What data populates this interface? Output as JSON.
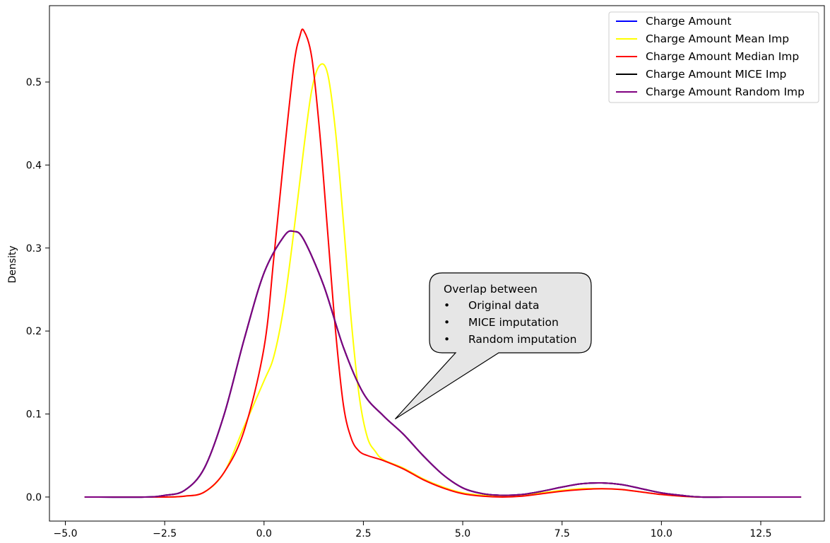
{
  "chart_data": {
    "type": "line",
    "title": "",
    "xlabel": "",
    "ylabel": "Density",
    "xlim": [
      -5.4,
      14.1
    ],
    "ylim": [
      -0.029,
      0.592
    ],
    "xticks": [
      -5.0,
      -2.5,
      0.0,
      2.5,
      5.0,
      7.5,
      10.0,
      12.5
    ],
    "xtick_labels": [
      "−5.0",
      "−2.5",
      "0.0",
      "2.5",
      "5.0",
      "7.5",
      "10.0",
      "12.5"
    ],
    "yticks": [
      0.0,
      0.1,
      0.2,
      0.3,
      0.4,
      0.5
    ],
    "ytick_labels": [
      "0.0",
      "0.1",
      "0.2",
      "0.3",
      "0.4",
      "0.5"
    ],
    "legend_position": "top-right",
    "series": [
      {
        "name": "Charge Amount",
        "color": "#0000ff",
        "x": [
          -4.5,
          -3.0,
          -2.5,
          -2.0,
          -1.5,
          -1.0,
          -0.5,
          0.0,
          0.5,
          0.75,
          1.0,
          1.5,
          2.0,
          2.5,
          3.0,
          3.5,
          4.0,
          4.5,
          5.0,
          5.5,
          6.0,
          6.5,
          7.0,
          7.5,
          8.0,
          8.5,
          9.0,
          9.5,
          10.0,
          10.5,
          11.0,
          12.0,
          13.5
        ],
        "y": [
          0.0,
          0.0,
          0.002,
          0.008,
          0.035,
          0.1,
          0.19,
          0.27,
          0.314,
          0.32,
          0.31,
          0.255,
          0.18,
          0.125,
          0.098,
          0.076,
          0.05,
          0.027,
          0.011,
          0.004,
          0.002,
          0.003,
          0.007,
          0.012,
          0.016,
          0.017,
          0.015,
          0.01,
          0.005,
          0.002,
          0.0,
          0.0,
          0.0
        ]
      },
      {
        "name": "Charge Amount Mean Imp",
        "color": "#ffff00",
        "x": [
          -4.5,
          -3.0,
          -2.5,
          -2.0,
          -1.5,
          -1.0,
          -0.5,
          0.0,
          0.25,
          0.5,
          0.75,
          1.0,
          1.2,
          1.4,
          1.6,
          1.8,
          2.0,
          2.2,
          2.4,
          2.6,
          2.8,
          3.0,
          3.5,
          4.0,
          4.5,
          5.0,
          5.5,
          6.0,
          6.5,
          7.0,
          7.5,
          8.0,
          8.5,
          9.0,
          9.5,
          10.0,
          10.5,
          11.0,
          12.0,
          13.5
        ],
        "y": [
          0.0,
          0.0,
          0.0,
          0.001,
          0.006,
          0.03,
          0.085,
          0.14,
          0.17,
          0.23,
          0.32,
          0.42,
          0.49,
          0.52,
          0.51,
          0.44,
          0.33,
          0.21,
          0.12,
          0.072,
          0.055,
          0.045,
          0.035,
          0.022,
          0.012,
          0.005,
          0.002,
          0.001,
          0.002,
          0.005,
          0.008,
          0.01,
          0.01,
          0.009,
          0.006,
          0.003,
          0.001,
          0.0,
          0.0,
          0.0
        ]
      },
      {
        "name": "Charge Amount Median Imp",
        "color": "#ff0000",
        "x": [
          -4.5,
          -3.0,
          -2.5,
          -2.0,
          -1.5,
          -1.0,
          -0.5,
          0.0,
          0.25,
          0.5,
          0.75,
          0.9,
          1.0,
          1.2,
          1.4,
          1.6,
          1.8,
          2.0,
          2.2,
          2.4,
          2.6,
          2.8,
          3.0,
          3.5,
          4.0,
          4.5,
          5.0,
          5.5,
          6.0,
          6.5,
          7.0,
          7.5,
          8.0,
          8.5,
          9.0,
          9.5,
          10.0,
          10.5,
          11.0,
          12.0,
          13.5
        ],
        "y": [
          0.0,
          0.0,
          0.0,
          0.001,
          0.006,
          0.03,
          0.08,
          0.18,
          0.29,
          0.41,
          0.52,
          0.555,
          0.562,
          0.53,
          0.44,
          0.32,
          0.2,
          0.11,
          0.07,
          0.055,
          0.05,
          0.047,
          0.044,
          0.034,
          0.021,
          0.011,
          0.004,
          0.001,
          0.0,
          0.001,
          0.004,
          0.007,
          0.009,
          0.01,
          0.009,
          0.006,
          0.003,
          0.001,
          0.0,
          0.0,
          0.0
        ]
      },
      {
        "name": "Charge Amount MICE Imp",
        "color": "#000000",
        "x": [
          -4.5,
          -3.0,
          -2.5,
          -2.0,
          -1.5,
          -1.0,
          -0.5,
          0.0,
          0.5,
          0.75,
          1.0,
          1.5,
          2.0,
          2.5,
          3.0,
          3.5,
          4.0,
          4.5,
          5.0,
          5.5,
          6.0,
          6.5,
          7.0,
          7.5,
          8.0,
          8.5,
          9.0,
          9.5,
          10.0,
          10.5,
          11.0,
          12.0,
          13.5
        ],
        "y": [
          0.0,
          0.0,
          0.002,
          0.008,
          0.035,
          0.1,
          0.19,
          0.27,
          0.314,
          0.32,
          0.31,
          0.255,
          0.18,
          0.125,
          0.098,
          0.076,
          0.05,
          0.027,
          0.011,
          0.004,
          0.002,
          0.003,
          0.007,
          0.012,
          0.016,
          0.017,
          0.015,
          0.01,
          0.005,
          0.002,
          0.0,
          0.0,
          0.0
        ]
      },
      {
        "name": "Charge Amount Random Imp",
        "color": "#800080",
        "x": [
          -4.5,
          -3.0,
          -2.5,
          -2.0,
          -1.5,
          -1.0,
          -0.5,
          0.0,
          0.5,
          0.75,
          1.0,
          1.5,
          2.0,
          2.5,
          3.0,
          3.5,
          4.0,
          4.5,
          5.0,
          5.5,
          6.0,
          6.5,
          7.0,
          7.5,
          8.0,
          8.5,
          9.0,
          9.5,
          10.0,
          10.5,
          11.0,
          12.0,
          13.5
        ],
        "y": [
          0.0,
          0.0,
          0.002,
          0.008,
          0.035,
          0.1,
          0.19,
          0.27,
          0.314,
          0.32,
          0.31,
          0.255,
          0.18,
          0.125,
          0.098,
          0.076,
          0.05,
          0.027,
          0.011,
          0.004,
          0.002,
          0.003,
          0.007,
          0.012,
          0.016,
          0.017,
          0.015,
          0.01,
          0.005,
          0.002,
          0.0,
          0.0,
          0.0
        ]
      }
    ],
    "annotation": {
      "title": "Overlap between",
      "bullet_symbol": "•",
      "items": [
        "Original data",
        "MICE imputation",
        "Random imputation"
      ],
      "pointer_target": {
        "x": 3.3,
        "y": 0.094
      },
      "fill_color": "#e6e6e6"
    }
  }
}
